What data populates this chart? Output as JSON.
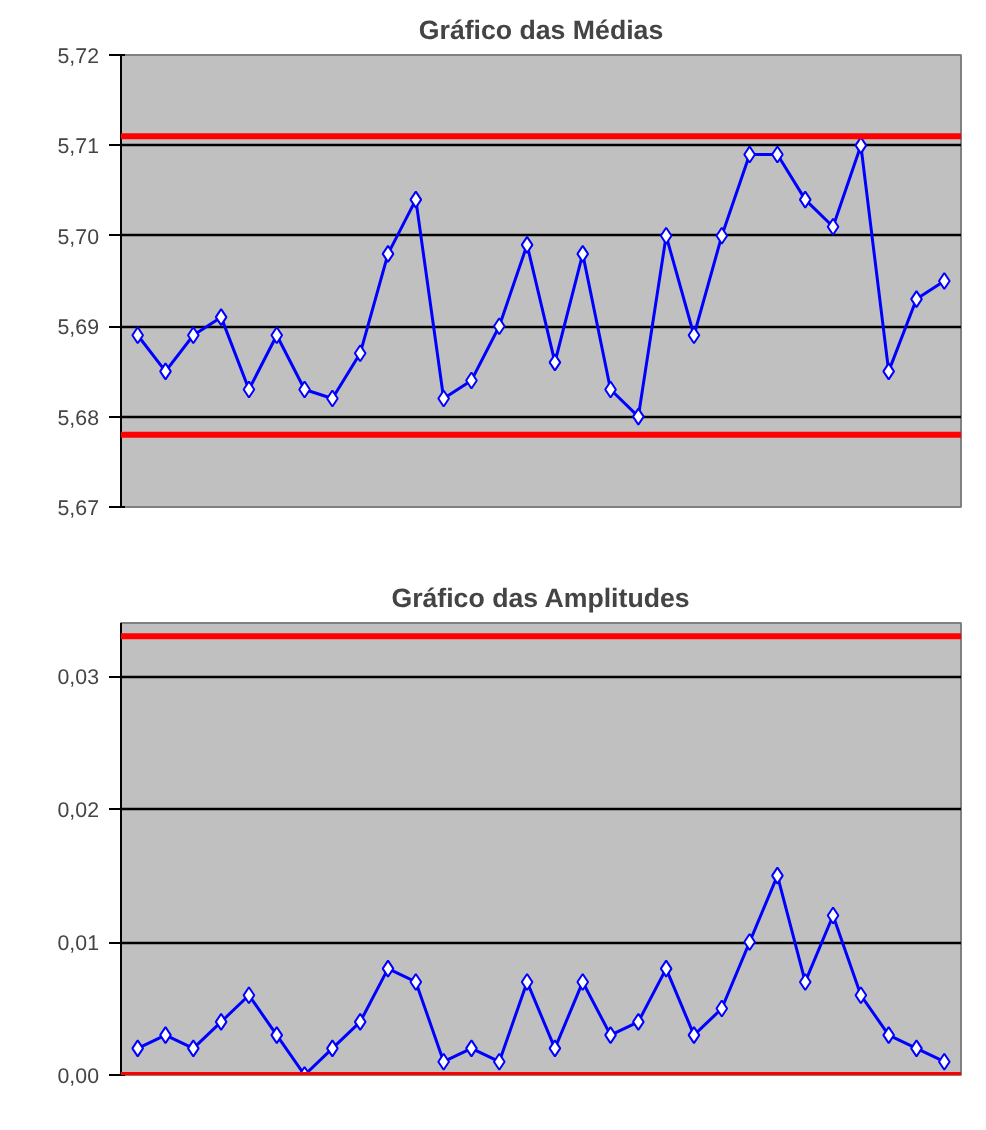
{
  "chart_data": [
    {
      "type": "line",
      "title": "Gráfico das Médias",
      "categories": [
        null,
        null,
        null,
        null,
        null,
        null,
        null,
        null,
        null,
        null,
        null,
        null,
        null,
        null,
        null,
        null,
        null,
        null,
        null,
        null,
        null,
        null,
        null,
        null,
        null,
        null,
        null,
        null,
        null,
        null
      ],
      "series": [
        {
          "color": "#0000ff",
          "values": [
            5.689,
            5.685,
            5.689,
            5.691,
            5.683,
            5.689,
            5.683,
            5.682,
            5.687,
            5.698,
            5.704,
            5.682,
            5.684,
            5.69,
            5.699,
            5.686,
            5.698,
            5.683,
            5.68,
            5.7,
            5.689,
            5.7,
            5.709,
            5.709,
            5.704,
            5.701,
            5.71,
            5.685,
            5.693,
            5.695
          ]
        }
      ],
      "ylim": [
        5.67,
        5.72
      ],
      "yticks": [
        {
          "value": 5.67,
          "label": "5,67"
        },
        {
          "value": 5.68,
          "label": "5,68"
        },
        {
          "value": 5.69,
          "label": "5,69"
        },
        {
          "value": 5.7,
          "label": "5,70"
        },
        {
          "value": 5.71,
          "label": "5,71"
        },
        {
          "value": 5.72,
          "label": "5,72"
        }
      ],
      "ref_lines": [
        {
          "axis": "y",
          "value": 5.711,
          "label": null,
          "color": "#ff0000"
        },
        {
          "axis": "y",
          "value": 5.678,
          "label": null,
          "color": "#ff0000"
        }
      ],
      "grid": "y",
      "marker": "diamond",
      "line_style": "solid",
      "tick_labels": "y"
    },
    {
      "type": "line",
      "title": "Gráfico das Amplitudes",
      "categories": [
        null,
        null,
        null,
        null,
        null,
        null,
        null,
        null,
        null,
        null,
        null,
        null,
        null,
        null,
        null,
        null,
        null,
        null,
        null,
        null,
        null,
        null,
        null,
        null,
        null,
        null,
        null,
        null,
        null,
        null
      ],
      "series": [
        {
          "color": "#0000ff",
          "values": [
            0.002,
            0.003,
            0.002,
            0.004,
            0.006,
            0.003,
            0.0,
            0.002,
            0.004,
            0.008,
            0.007,
            0.001,
            0.002,
            0.001,
            0.007,
            0.002,
            0.007,
            0.003,
            0.004,
            0.008,
            0.003,
            0.005,
            0.01,
            0.015,
            0.007,
            0.012,
            0.006,
            0.003,
            0.002,
            0.001
          ]
        }
      ],
      "ylim": [
        0,
        0.034
      ],
      "yticks": [
        {
          "value": 0,
          "label": "0,00"
        },
        {
          "value": 0.01,
          "label": "0,01"
        },
        {
          "value": 0.02,
          "label": "0,02"
        },
        {
          "value": 0.03,
          "label": "0,03"
        }
      ],
      "ref_lines": [
        {
          "axis": "y",
          "value": 0.033,
          "label": null,
          "color": "#ff0000"
        },
        {
          "axis": "y",
          "value": 0,
          "label": null,
          "color": "#ff0000"
        }
      ],
      "grid": "y",
      "marker": "diamond",
      "line_style": "solid",
      "tick_labels": "y"
    }
  ]
}
